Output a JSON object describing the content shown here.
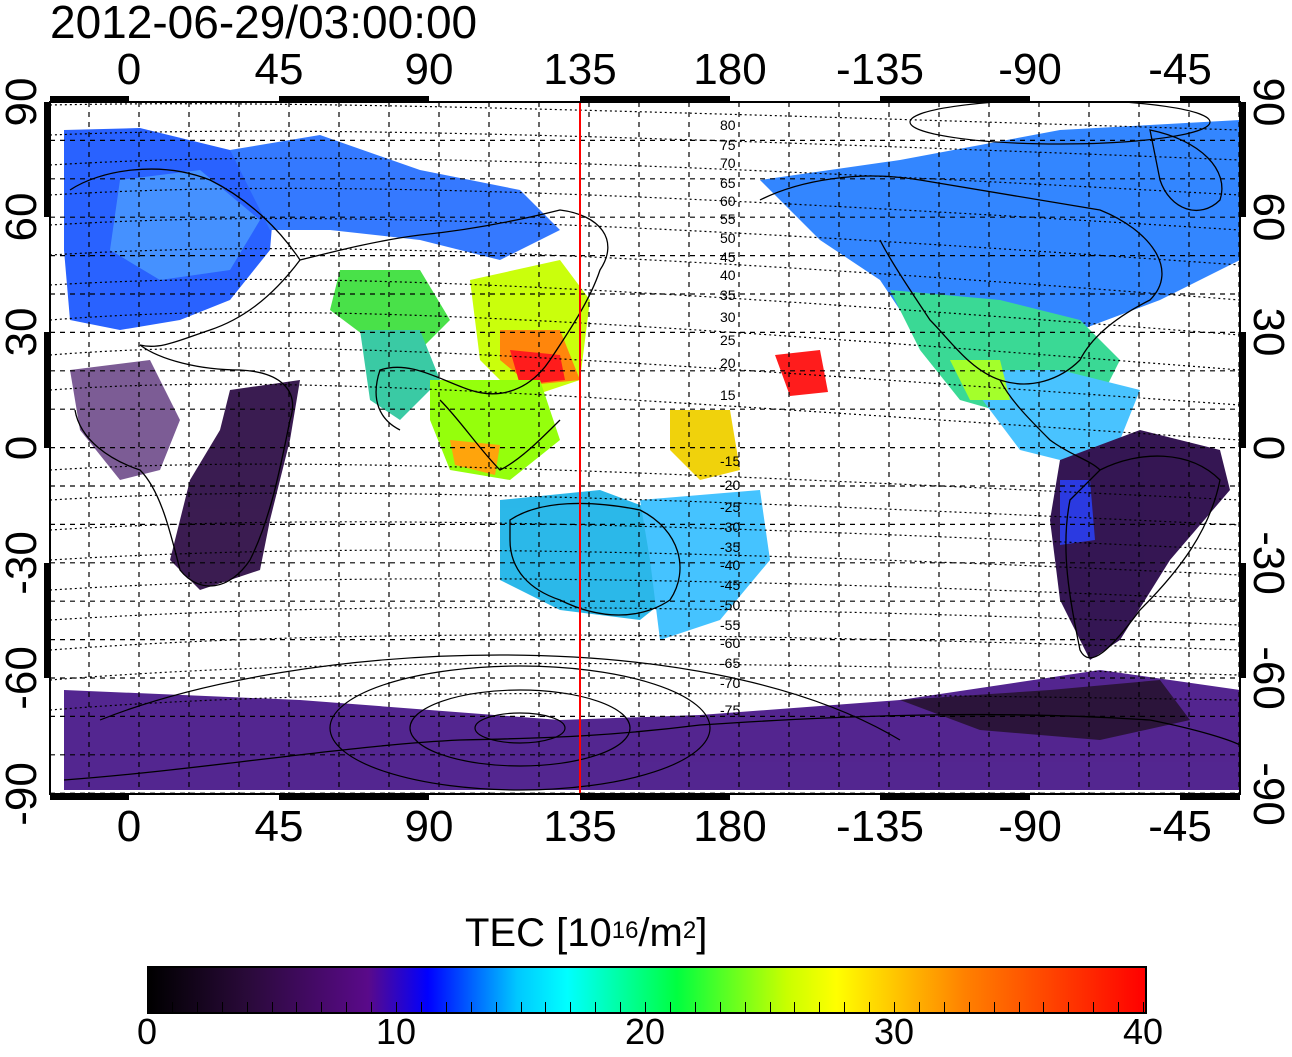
{
  "title": "2012-06-29/03:00:00",
  "axes": {
    "top_lon_labels": [
      "0",
      "45",
      "90",
      "135",
      "180",
      "-135",
      "-90",
      "-45"
    ],
    "bottom_lon_labels": [
      "0",
      "45",
      "90",
      "135",
      "180",
      "-135",
      "-90",
      "-45"
    ],
    "left_lat_labels": [
      "90",
      "60",
      "30",
      "0",
      "-30",
      "-60",
      "-90"
    ],
    "right_lat_labels": [
      "90",
      "60",
      "30",
      "0",
      "-30",
      "-60",
      "-90"
    ]
  },
  "contour_labels": [
    "80",
    "75",
    "70",
    "65",
    "60",
    "55",
    "50",
    "45",
    "40",
    "35",
    "30",
    "25",
    "20",
    "15",
    "-15",
    "-20",
    "-25",
    "-30",
    "-35",
    "-40",
    "-45",
    "-50",
    "-55",
    "-60",
    "-65",
    "-70",
    "-75"
  ],
  "colorbar": {
    "title_main": "TEC  [10",
    "title_sup1": "16",
    "title_mid": "/m",
    "title_sup2": "2",
    "title_end": "]",
    "ticks": [
      "0",
      "10",
      "20",
      "30",
      "40"
    ],
    "colors": [
      "#000000",
      "#5a0a8a",
      "#0000ff",
      "#00ffff",
      "#00ff40",
      "#ffff00",
      "#ff8000",
      "#ff0000"
    ]
  },
  "marker_line_color": "#ff0000",
  "chart_data": {
    "type": "heatmap",
    "title": "2012-06-29/03:00:00",
    "quantity": "TEC [10^16/m^2]",
    "x_range": [
      -25,
      330
    ],
    "y_range": [
      -90,
      90
    ],
    "color_range": [
      0,
      40
    ],
    "marker_longitude": 135,
    "regions": [
      {
        "lon": [
          -20,
          30
        ],
        "lat": [
          40,
          85
        ],
        "tec": 10
      },
      {
        "lon": [
          30,
          60
        ],
        "lat": [
          50,
          80
        ],
        "tec": 12
      },
      {
        "lon": [
          70,
          100
        ],
        "lat": [
          25,
          45
        ],
        "tec": 22
      },
      {
        "lon": [
          105,
          130
        ],
        "lat": [
          15,
          35
        ],
        "tec": 32
      },
      {
        "lon": [
          110,
          125
        ],
        "lat": [
          15,
          30
        ],
        "tec": 37
      },
      {
        "lon": [
          95,
          125
        ],
        "lat": [
          -10,
          15
        ],
        "tec": 26
      },
      {
        "lon": [
          115,
          150
        ],
        "lat": [
          -40,
          -10
        ],
        "tec": 16
      },
      {
        "lon": [
          150,
          190
        ],
        "lat": [
          -50,
          -10
        ],
        "tec": 15
      },
      {
        "lon": [
          165,
          190
        ],
        "lat": [
          -5,
          10
        ],
        "tec": 30
      },
      {
        "lon": [
          200,
          215
        ],
        "lat": [
          15,
          25
        ],
        "tec": 39
      },
      {
        "lon": [
          220,
          300
        ],
        "lat": [
          35,
          70
        ],
        "tec": 14
      },
      {
        "lon": [
          240,
          290
        ],
        "lat": [
          10,
          35
        ],
        "tec": 22
      },
      {
        "lon": [
          285,
          320
        ],
        "lat": [
          -55,
          -5
        ],
        "tec": 3
      },
      {
        "lon": [
          10,
          50
        ],
        "lat": [
          -40,
          15
        ],
        "tec": 3
      },
      {
        "lon": [
          -20,
          330
        ],
        "lat": [
          -90,
          -70
        ],
        "tec": 5
      }
    ]
  }
}
